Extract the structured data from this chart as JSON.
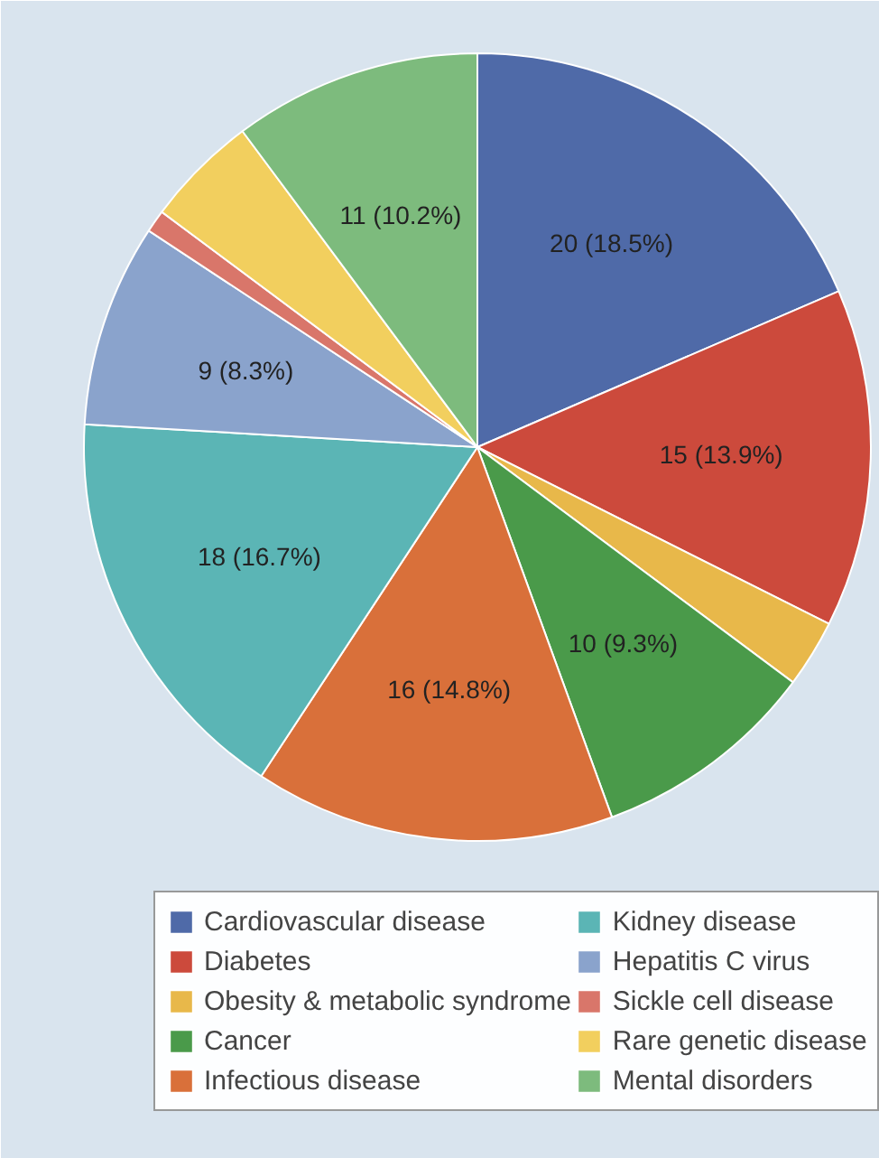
{
  "chart_data": {
    "type": "pie",
    "categories": [
      "Cardiovascular disease",
      "Diabetes",
      "Obesity & metabolic syndrome",
      "Cancer",
      "Infectious disease",
      "Kidney disease",
      "Hepatitis C virus",
      "Sickle cell disease",
      "Rare genetic disease",
      "Mental disorders"
    ],
    "values": [
      20,
      15,
      3,
      10,
      16,
      18,
      9,
      1,
      5,
      11
    ],
    "value_labels": [
      "20 (18.5%)",
      "15 (13.9%)",
      null,
      "10 (9.3%)",
      "16 (14.8%)",
      "18 (16.7%)",
      "9 (8.3%)",
      null,
      null,
      "11 (10.2%)"
    ],
    "colors": [
      "#4f6aa8",
      "#cc4a3c",
      "#e8b84a",
      "#4a9a4a",
      "#d9703a",
      "#5bb5b5",
      "#8aa3cc",
      "#d9766a",
      "#f2cf5e",
      "#7dbb7d"
    ],
    "legend": "bottom"
  }
}
